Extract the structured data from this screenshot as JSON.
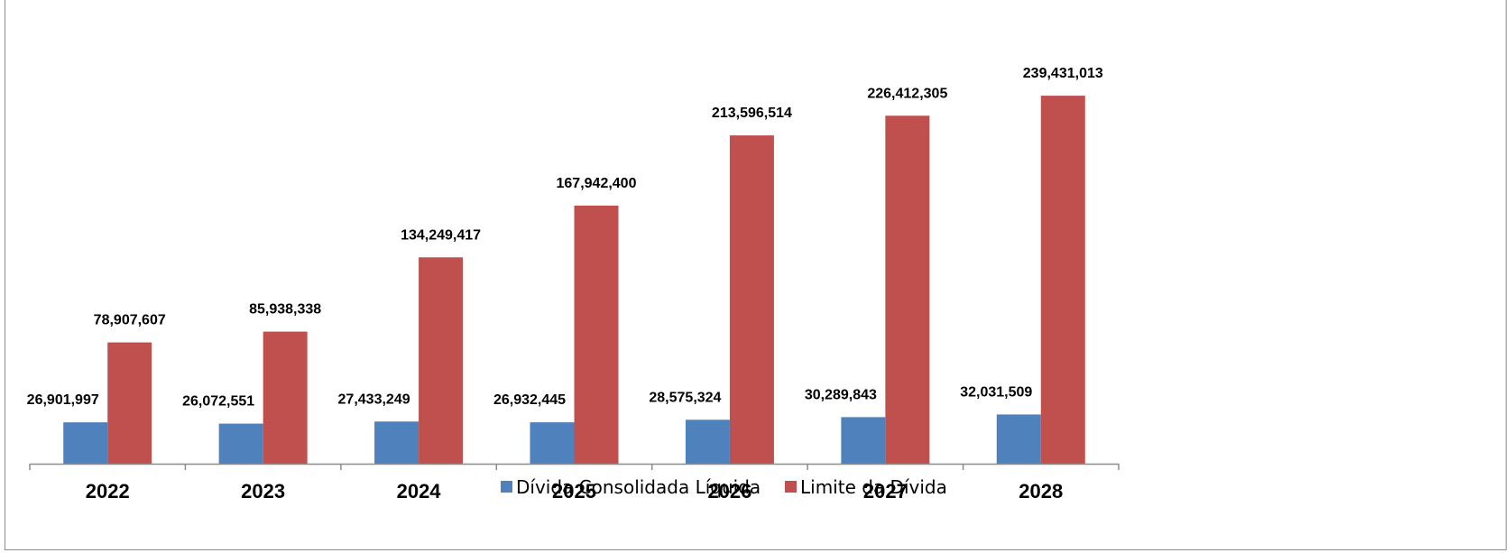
{
  "chart_data": {
    "type": "bar",
    "categories": [
      "2022",
      "2023",
      "2024",
      "2025",
      "2026",
      "2027",
      "2028"
    ],
    "series": [
      {
        "name": "Dívida Consolidada Líquida",
        "color": "#4F81BD",
        "values": [
          26901997,
          26072551,
          27433249,
          26932445,
          28575324,
          30289843,
          32031509
        ],
        "labels": [
          "26,901,997",
          "26,072,551",
          "27,433,249",
          "26,932,445",
          "28,575,324",
          "30,289,843",
          "32,031,509"
        ]
      },
      {
        "name": "Limite da Dívida",
        "color": "#C0504D",
        "values": [
          78907607,
          85938338,
          134249417,
          167942400,
          213596514,
          226412305,
          239431013
        ],
        "labels": [
          "78,907,607",
          "85,938,338",
          "134,249,417",
          "167,942,400",
          "213,596,514",
          "226,412,305",
          "239,431,013"
        ]
      }
    ],
    "ylim": [
      0,
      270000000
    ],
    "grid": false,
    "legend_position": "bottom"
  }
}
